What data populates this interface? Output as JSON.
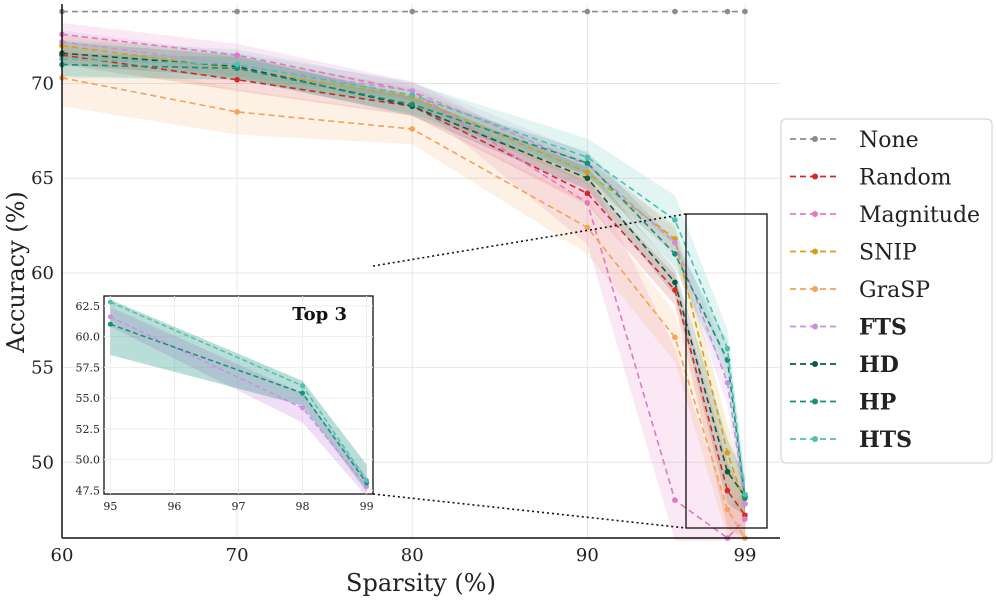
{
  "chart_data": {
    "type": "line",
    "title": "",
    "xlabel": "Sparsity (%)",
    "ylabel": "Accuracy (%)",
    "x": [
      60,
      70,
      80,
      90,
      95,
      98,
      99
    ],
    "xlim": [
      60,
      101
    ],
    "ylim": [
      46,
      74.2
    ],
    "xticks": [
      60,
      70,
      80,
      90,
      99
    ],
    "yticks": [
      50,
      55,
      60,
      65,
      70
    ],
    "grid": true,
    "legend_position": "right",
    "series": [
      {
        "name": "None",
        "bold": false,
        "color": "#8c8c8c",
        "values": [
          73.8,
          73.8,
          73.8,
          73.8,
          73.8,
          73.8,
          73.8
        ],
        "lo": null,
        "hi": null
      },
      {
        "name": "Random",
        "bold": false,
        "color": "#d62728",
        "values": [
          71.5,
          70.2,
          68.8,
          64.2,
          59.1,
          48.5,
          47.2
        ],
        "lo": [
          71.0,
          69.6,
          68.3,
          63.6,
          58.3,
          46.5,
          46.0
        ],
        "hi": [
          72.0,
          70.8,
          69.3,
          64.8,
          59.9,
          50.0,
          48.3
        ]
      },
      {
        "name": "Magnitude",
        "bold": false,
        "color": "#e377c2",
        "values": [
          72.6,
          71.5,
          69.6,
          63.7,
          48.0,
          46.0,
          47.0
        ],
        "lo": [
          72.0,
          70.9,
          69.1,
          61.5,
          39.0,
          45.0,
          46.0
        ],
        "hi": [
          73.2,
          72.1,
          70.1,
          65.5,
          56.0,
          47.5,
          48.5
        ]
      },
      {
        "name": "SNIP",
        "bold": false,
        "color": "#d4a017",
        "values": [
          72.0,
          70.8,
          69.3,
          65.3,
          61.8,
          50.5,
          47.8
        ],
        "lo": [
          71.4,
          70.2,
          68.8,
          64.7,
          61.1,
          49.0,
          46.8
        ],
        "hi": [
          72.6,
          71.4,
          69.8,
          65.9,
          62.5,
          52.0,
          48.8
        ]
      },
      {
        "name": "GraSP",
        "bold": false,
        "color": "#f4a259",
        "values": [
          70.3,
          68.5,
          67.6,
          62.4,
          56.6,
          47.5,
          46.0
        ],
        "lo": [
          68.8,
          67.3,
          66.8,
          61.0,
          55.3,
          46.0,
          45.0
        ],
        "hi": [
          71.8,
          69.7,
          68.4,
          63.8,
          57.9,
          49.0,
          47.0
        ]
      },
      {
        "name": "FTS",
        "bold": true,
        "color": "#cc8fe0",
        "values": [
          72.2,
          71.0,
          69.6,
          65.7,
          61.6,
          54.2,
          47.8
        ],
        "lo": [
          71.6,
          70.4,
          69.1,
          65.1,
          60.9,
          53.0,
          47.0
        ],
        "hi": [
          72.8,
          71.6,
          70.1,
          66.3,
          62.3,
          55.4,
          48.6
        ]
      },
      {
        "name": "HD",
        "bold": true,
        "color": "#0f5a40",
        "values": [
          71.6,
          70.9,
          68.8,
          65.0,
          59.5,
          49.5,
          48.2
        ],
        "lo": [
          71.0,
          70.3,
          68.3,
          64.4,
          58.8,
          47.8,
          47.2
        ],
        "hi": [
          72.2,
          71.5,
          69.3,
          65.6,
          60.2,
          51.2,
          49.2
        ]
      },
      {
        "name": "HP",
        "bold": true,
        "color": "#16907a",
        "values": [
          71.0,
          70.8,
          68.9,
          65.8,
          61.0,
          55.4,
          48.1
        ],
        "lo": [
          70.4,
          70.2,
          68.4,
          65.2,
          60.3,
          54.4,
          47.3
        ],
        "hi": [
          71.6,
          71.4,
          69.4,
          66.4,
          61.7,
          56.4,
          48.9
        ]
      },
      {
        "name": "HTS",
        "bold": true,
        "color": "#4fbfb2",
        "values": [
          71.3,
          71.0,
          69.4,
          66.1,
          62.8,
          56.0,
          48.3
        ],
        "lo": [
          70.3,
          70.2,
          68.8,
          65.1,
          61.5,
          55.0,
          47.3
        ],
        "hi": [
          72.3,
          71.8,
          70.0,
          67.1,
          64.1,
          57.0,
          49.3
        ]
      }
    ],
    "inset": {
      "title": "Top 3",
      "series": [
        "FTS",
        "HD",
        "HP",
        "HTS"
      ],
      "x": [
        95,
        98,
        99
      ],
      "xticks": [
        "95",
        "96",
        "97",
        "98",
        "99"
      ],
      "yticks": [
        "47.5",
        "50.0",
        "52.5",
        "55.0",
        "57.5",
        "60.0",
        "62.5"
      ],
      "xlim": [
        94.9,
        99.1
      ],
      "ylim": [
        47.2,
        63.3
      ],
      "values": {
        "FTS": [
          61.6,
          54.2,
          47.8
        ],
        "HP": [
          61.0,
          55.4,
          48.1
        ],
        "HTS": [
          62.8,
          56.0,
          48.3
        ]
      },
      "bands": {
        "FTS": {
          "lo": [
            60.8,
            53.0,
            47.0
          ],
          "hi": [
            62.4,
            55.4,
            48.6
          ]
        },
        "HP": {
          "lo": [
            58.5,
            54.4,
            47.4
          ],
          "hi": [
            63.0,
            56.4,
            49.6
          ]
        }
      }
    }
  }
}
